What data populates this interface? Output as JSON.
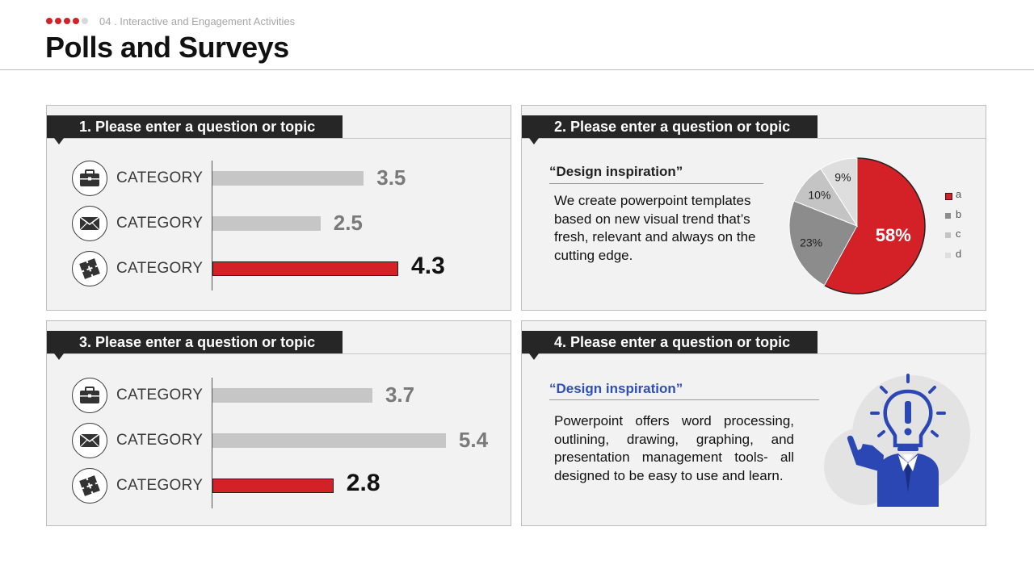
{
  "header": {
    "section_label": "04 . Interactive and Engagement Activities",
    "title": "Polls and Surveys",
    "progress_dots": {
      "total": 5,
      "active": 4
    }
  },
  "colors": {
    "accent": "#d42127",
    "dark": "#262626",
    "bar_gray": "#c6c6c6",
    "blue": "#2f4fb5"
  },
  "panels": {
    "p1": {
      "heading": "1. Please enter a question or topic",
      "rows": [
        {
          "icon": "briefcase-icon",
          "label": "CATEGORY",
          "value": "3.5",
          "highlight": false
        },
        {
          "icon": "envelope-icon",
          "label": "CATEGORY",
          "value": "2.5",
          "highlight": false
        },
        {
          "icon": "puzzle-icon",
          "label": "CATEGORY",
          "value": "4.3",
          "highlight": true
        }
      ]
    },
    "p2": {
      "heading": "2. Please enter a question or topic",
      "quote": "“Design inspiration”",
      "paragraph": "We create powerpoint templates based on new visual trend that’s fresh, relevant and always on the cutting edge."
    },
    "p3": {
      "heading": "3. Please enter a question or topic",
      "rows": [
        {
          "icon": "briefcase-icon",
          "label": "CATEGORY",
          "value": "3.7",
          "highlight": false
        },
        {
          "icon": "envelope-icon",
          "label": "CATEGORY",
          "value": "5.4",
          "highlight": false
        },
        {
          "icon": "puzzle-icon",
          "label": "CATEGORY",
          "value": "2.8",
          "highlight": true
        }
      ]
    },
    "p4": {
      "heading": "4. Please enter a question or topic",
      "quote": "“Design inspiration”",
      "paragraph": "Powerpoint offers word processing, outlining, drawing, graphing, and presentation management tools- all designed to be easy to use and learn.",
      "illustration": "idea-businessman-icon"
    }
  },
  "chart_data": [
    {
      "type": "bar",
      "orientation": "horizontal",
      "categories": [
        "CATEGORY",
        "CATEGORY",
        "CATEGORY"
      ],
      "values": [
        3.5,
        2.5,
        4.3
      ],
      "xlim": [
        0,
        6
      ],
      "highlight_index": 2
    },
    {
      "type": "pie",
      "categories": [
        "a",
        "b",
        "c",
        "d"
      ],
      "values": [
        58,
        23,
        10,
        9
      ],
      "labels": [
        "58%",
        "23%",
        "10%",
        "9%"
      ],
      "colors": [
        "#d42127",
        "#8c8c8c",
        "#c4c4c4",
        "#dedede"
      ],
      "legend": "right"
    },
    {
      "type": "bar",
      "orientation": "horizontal",
      "categories": [
        "CATEGORY",
        "CATEGORY",
        "CATEGORY"
      ],
      "values": [
        3.7,
        5.4,
        2.8
      ],
      "xlim": [
        0,
        6
      ],
      "highlight_index": 2
    }
  ]
}
